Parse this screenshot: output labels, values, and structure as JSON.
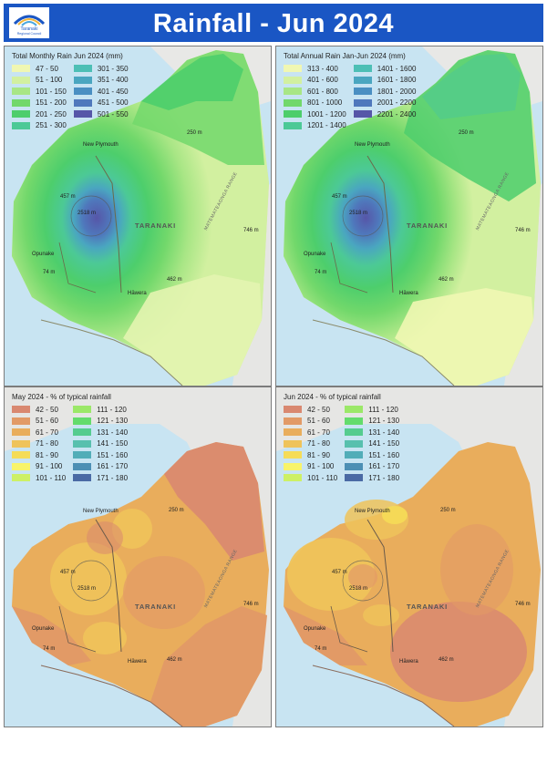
{
  "header": {
    "title": "Rainfall - Jun 2024",
    "logo_line1": "Taranaki",
    "logo_line2": "Regional Council"
  },
  "places": {
    "new_plymouth": "New Plymouth",
    "taranaki": "TARANAKI",
    "opunake": "Opunake",
    "hawera": "Hāwera",
    "range": "MATEMATEAONGA RANGE",
    "elev_summit": "2518 m",
    "elev_ring": "457 m",
    "elev_250": "250 m",
    "elev_746": "746 m",
    "elev_462": "462 m",
    "elev_74": "74 m"
  },
  "panels": [
    {
      "title": "Total Monthly Rain Jun 2024 (mm)",
      "legend_col1": [
        {
          "label": "47 - 50",
          "color": "#f0f7b2"
        },
        {
          "label": "51 - 100",
          "color": "#d2f0a0"
        },
        {
          "label": "101 - 150",
          "color": "#a8e685"
        },
        {
          "label": "151 - 200",
          "color": "#72d86b"
        },
        {
          "label": "201 - 250",
          "color": "#4dce6c"
        },
        {
          "label": "251 - 300",
          "color": "#4cc996"
        }
      ],
      "legend_col2": [
        {
          "label": "301 - 350",
          "color": "#4dbfb5"
        },
        {
          "label": "351 - 400",
          "color": "#4aa6c0"
        },
        {
          "label": "401 - 450",
          "color": "#4a8fc2"
        },
        {
          "label": "451 - 500",
          "color": "#4f78bc"
        },
        {
          "label": "501 - 550",
          "color": "#5656a8"
        }
      ]
    },
    {
      "title": "Total Annual Rain Jan-Jun 2024 (mm)",
      "legend_col1": [
        {
          "label": "313 - 400",
          "color": "#f0f7b2"
        },
        {
          "label": "401 - 600",
          "color": "#d2f0a0"
        },
        {
          "label": "601 - 800",
          "color": "#a8e685"
        },
        {
          "label": "801 - 1000",
          "color": "#72d86b"
        },
        {
          "label": "1001 - 1200",
          "color": "#4dce6c"
        },
        {
          "label": "1201 - 1400",
          "color": "#4cc996"
        }
      ],
      "legend_col2": [
        {
          "label": "1401 - 1600",
          "color": "#4dbfb5"
        },
        {
          "label": "1601 - 1800",
          "color": "#4aa6c0"
        },
        {
          "label": "1801 - 2000",
          "color": "#4a8fc2"
        },
        {
          "label": "2001 - 2200",
          "color": "#4f78bc"
        },
        {
          "label": "2201 - 2400",
          "color": "#5656a8"
        }
      ]
    },
    {
      "title": "May 2024 - % of typical rainfall",
      "legend_col1": [
        {
          "label": "42 - 50",
          "color": "#d98870"
        },
        {
          "label": "51 - 60",
          "color": "#e29a66"
        },
        {
          "label": "61 - 70",
          "color": "#e9ad5c"
        },
        {
          "label": "71 - 80",
          "color": "#efc35a"
        },
        {
          "label": "81 - 90",
          "color": "#f5dc57"
        },
        {
          "label": "91 - 100",
          "color": "#f8f46a"
        },
        {
          "label": "101 - 110",
          "color": "#cdf065"
        }
      ],
      "legend_col2": [
        {
          "label": "111 - 120",
          "color": "#9be868"
        },
        {
          "label": "121 - 130",
          "color": "#63dc6c"
        },
        {
          "label": "131 - 140",
          "color": "#55cc8f"
        },
        {
          "label": "141 - 150",
          "color": "#58c0ae"
        },
        {
          "label": "151 - 160",
          "color": "#52adb8"
        },
        {
          "label": "161 - 170",
          "color": "#4c8fb4"
        },
        {
          "label": "171 - 180",
          "color": "#4a6aa4"
        }
      ]
    },
    {
      "title": "Jun 2024 - % of typical rainfall",
      "legend_col1": [
        {
          "label": "42 - 50",
          "color": "#d98870"
        },
        {
          "label": "51 - 60",
          "color": "#e29a66"
        },
        {
          "label": "61 - 70",
          "color": "#e9ad5c"
        },
        {
          "label": "71 - 80",
          "color": "#efc35a"
        },
        {
          "label": "81 - 90",
          "color": "#f5dc57"
        },
        {
          "label": "91 - 100",
          "color": "#f8f46a"
        },
        {
          "label": "101 - 110",
          "color": "#cdf065"
        }
      ],
      "legend_col2": [
        {
          "label": "111 - 120",
          "color": "#9be868"
        },
        {
          "label": "121 - 130",
          "color": "#63dc6c"
        },
        {
          "label": "131 - 140",
          "color": "#55cc8f"
        },
        {
          "label": "141 - 150",
          "color": "#58c0ae"
        },
        {
          "label": "151 - 160",
          "color": "#52adb8"
        },
        {
          "label": "161 - 170",
          "color": "#4c8fb4"
        },
        {
          "label": "171 - 180",
          "color": "#4a6aa4"
        }
      ]
    }
  ]
}
